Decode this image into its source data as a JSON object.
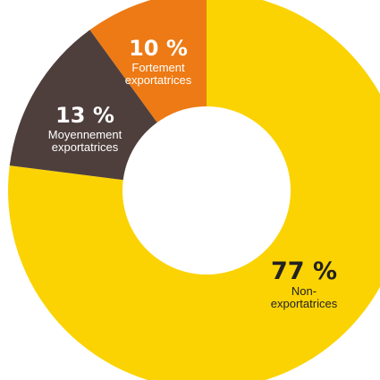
{
  "chart_data": {
    "type": "pie",
    "title": "",
    "slices": [
      {
        "label": "Non-exportatrices",
        "label_lines": [
          "Non-",
          "exportatrices"
        ],
        "value": 77,
        "value_label": "77 %",
        "color": "#fbd303",
        "text_color": "#222222"
      },
      {
        "label": "Moyennement exportatrices",
        "label_lines": [
          "Moyennement",
          "exportatrices"
        ],
        "value": 13,
        "value_label": "13 %",
        "color": "#4e3f3c",
        "text_color": "#ffffff"
      },
      {
        "label": "Fortement exportatrices",
        "label_lines": [
          "Fortement",
          "exportatrices"
        ],
        "value": 10,
        "value_label": "10 %",
        "color": "#ed7a14",
        "text_color": "#ffffff"
      }
    ],
    "start_angle_deg": 0,
    "direction": "clockwise",
    "donut": true
  }
}
